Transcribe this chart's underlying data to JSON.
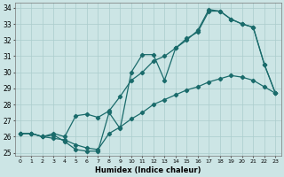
{
  "xlabel": "Humidex (Indice chaleur)",
  "bg_color": "#cce5e5",
  "line_color": "#1a6b6b",
  "grid_color": "#aacccc",
  "xlim": [
    -0.5,
    23.5
  ],
  "ylim": [
    24.8,
    34.3
  ],
  "xticks": [
    0,
    1,
    2,
    3,
    4,
    5,
    6,
    7,
    8,
    9,
    10,
    11,
    12,
    13,
    14,
    15,
    16,
    17,
    18,
    19,
    20,
    21,
    22,
    23
  ],
  "yticks": [
    25,
    26,
    27,
    28,
    29,
    30,
    31,
    32,
    33,
    34
  ],
  "line1_x": [
    0,
    1,
    2,
    3,
    4,
    5,
    6,
    7,
    8,
    9,
    10,
    11,
    12,
    13,
    14,
    15,
    16,
    17,
    18,
    19,
    20,
    21,
    22,
    23
  ],
  "line1_y": [
    26.2,
    26.2,
    26.0,
    26.1,
    25.7,
    25.2,
    25.1,
    25.1,
    27.5,
    26.5,
    30.0,
    31.1,
    31.1,
    29.5,
    31.5,
    32.0,
    32.6,
    33.9,
    33.8,
    33.3,
    33.0,
    32.8,
    30.5,
    28.7
  ],
  "line2_x": [
    0,
    1,
    2,
    3,
    4,
    5,
    6,
    7,
    8,
    9,
    10,
    11,
    12,
    13,
    14,
    15,
    16,
    17,
    18,
    19,
    20,
    21,
    22,
    23
  ],
  "line2_y": [
    26.2,
    26.2,
    26.0,
    26.2,
    26.0,
    27.3,
    27.4,
    27.2,
    27.6,
    28.5,
    29.5,
    30.0,
    30.7,
    31.0,
    31.5,
    32.1,
    32.5,
    33.8,
    33.8,
    33.3,
    33.0,
    32.8,
    30.5,
    28.7
  ],
  "line3_x": [
    0,
    1,
    2,
    3,
    4,
    5,
    6,
    7,
    8,
    9,
    10,
    11,
    12,
    13,
    14,
    15,
    16,
    17,
    18,
    19,
    20,
    21,
    22,
    23
  ],
  "line3_y": [
    26.2,
    26.2,
    26.0,
    25.9,
    25.8,
    25.5,
    25.3,
    25.2,
    26.2,
    26.6,
    27.1,
    27.5,
    28.0,
    28.3,
    28.6,
    28.9,
    29.1,
    29.4,
    29.6,
    29.8,
    29.7,
    29.5,
    29.1,
    28.7
  ],
  "xlabel_fontsize": 6,
  "xtick_fontsize": 4.5,
  "ytick_fontsize": 5.5
}
